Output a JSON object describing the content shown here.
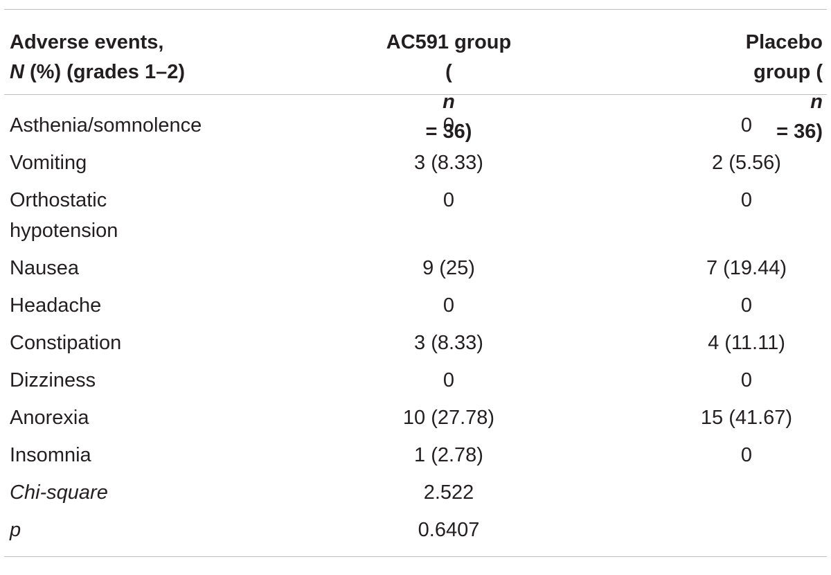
{
  "table": {
    "headers": {
      "col1_line1": "Adverse events,",
      "col1_line2_italic": "N",
      "col1_line2_rest": " (%) (grades 1–2)",
      "col2_line1": "AC591 group",
      "col2_line2_open": "(",
      "col2_line2_italic": "n",
      "col2_line2_rest": " = 36)",
      "col3_line1": "Placebo",
      "col3_line2_pre": "group (",
      "col3_line2_italic": "n",
      "col3_line2_rest": " = 36)"
    },
    "rows": [
      {
        "event": "Asthenia/somnolence",
        "ac591": "0",
        "placebo": "0"
      },
      {
        "event": "Vomiting",
        "ac591": "3 (8.33)",
        "placebo": "2 (5.56)"
      },
      {
        "event": "Orthostatic hypotension",
        "ac591": "0",
        "placebo": "0"
      },
      {
        "event": "Nausea",
        "ac591": "9 (25)",
        "placebo": "7 (19.44)"
      },
      {
        "event": "Headache",
        "ac591": "0",
        "placebo": "0"
      },
      {
        "event": "Constipation",
        "ac591": "3 (8.33)",
        "placebo": "4 (11.11)"
      },
      {
        "event": "Dizziness",
        "ac591": "0",
        "placebo": "0"
      },
      {
        "event": "Anorexia",
        "ac591": "10 (27.78)",
        "placebo": "15 (41.67)"
      },
      {
        "event": "Insomnia",
        "ac591": "1 (2.78)",
        "placebo": "0"
      },
      {
        "event": "Chi-square",
        "ac591": "2.522",
        "placebo": ""
      },
      {
        "event": "p",
        "ac591": "0.6407",
        "placebo": ""
      }
    ]
  }
}
